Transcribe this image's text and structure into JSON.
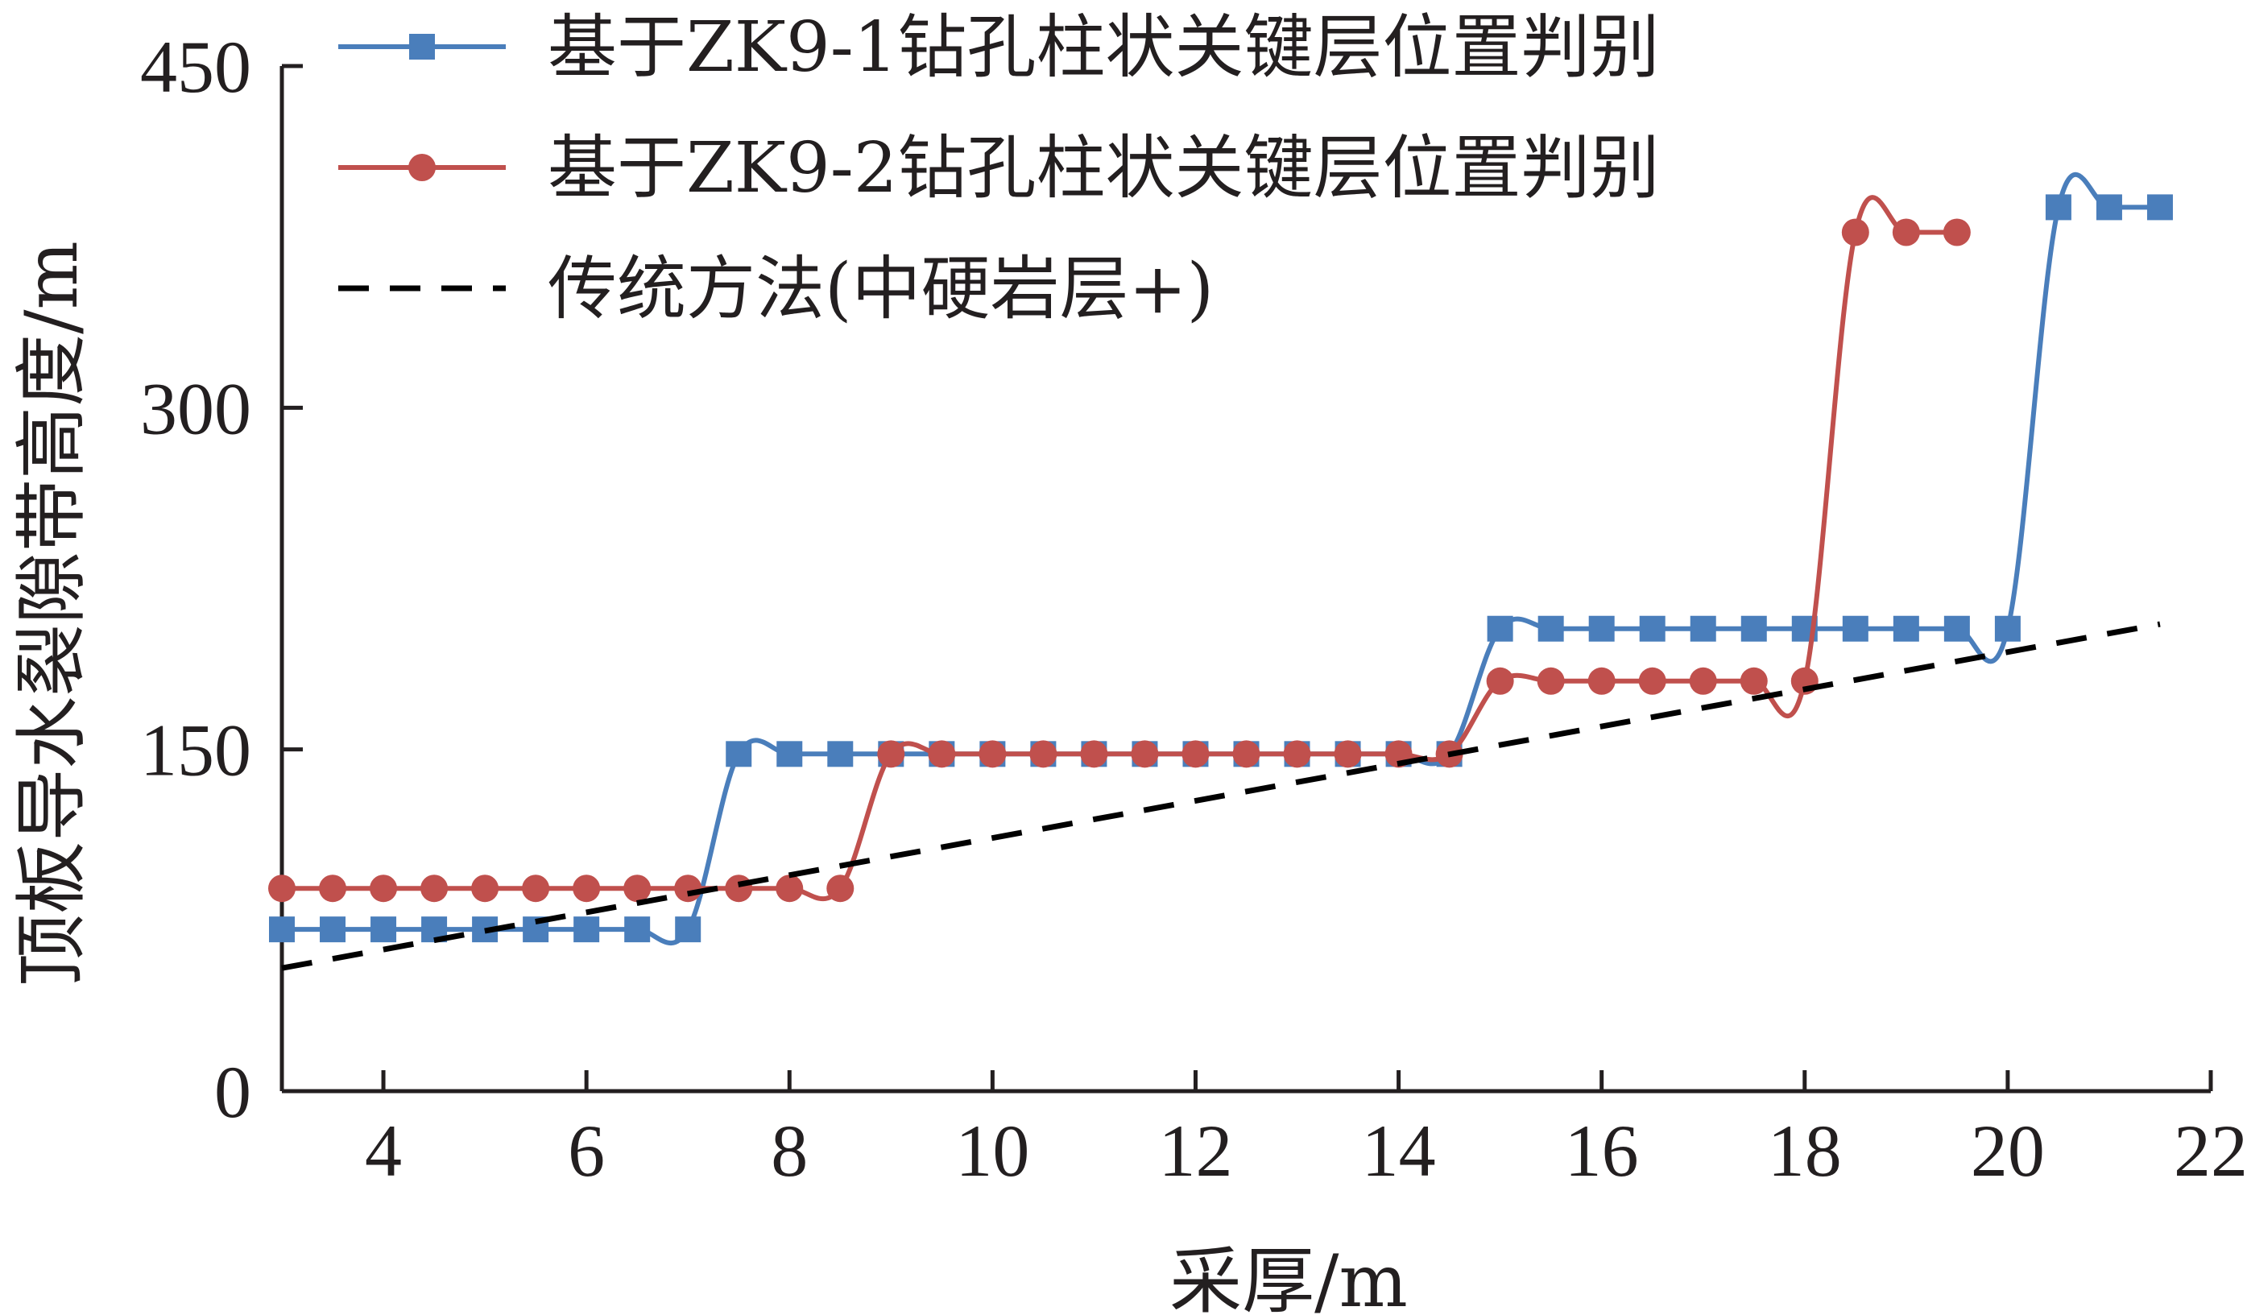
{
  "chart_data": {
    "type": "line",
    "xlabel": "采厚/m",
    "ylabel": "顶板导水裂隙带高度/m",
    "xlim": [
      3,
      22
    ],
    "ylim": [
      0,
      450
    ],
    "x_ticks": [
      4,
      6,
      8,
      10,
      12,
      14,
      16,
      18,
      20,
      22
    ],
    "y_ticks": [
      0,
      150,
      300,
      450
    ],
    "legend_position": "top",
    "series": [
      {
        "name": "基于ZK9-1钻孔柱状关键层位置判别",
        "color": "#4a7ebb",
        "marker": "square",
        "x": [
          3,
          3.5,
          4,
          4.5,
          5,
          5.5,
          6,
          6.5,
          7,
          7.5,
          8,
          8.5,
          9,
          9.5,
          10,
          10.5,
          11,
          11.5,
          12,
          12.5,
          13,
          13.5,
          14,
          14.5,
          15,
          15.5,
          16,
          16.5,
          17,
          17.5,
          18,
          18.5,
          19,
          19.5,
          20,
          20.5,
          21,
          21.5
        ],
        "y": [
          71,
          71,
          71,
          71,
          71,
          71,
          71,
          71,
          71,
          148,
          148,
          148,
          148,
          148,
          148,
          148,
          148,
          148,
          148,
          148,
          148,
          148,
          148,
          148,
          203,
          203,
          203,
          203,
          203,
          203,
          203,
          203,
          203,
          203,
          203,
          388,
          388,
          388
        ]
      },
      {
        "name": "基于ZK9-2钻孔柱状关键层位置判别",
        "color": "#c0504d",
        "marker": "circle",
        "x": [
          3,
          3.5,
          4,
          4.5,
          5,
          5.5,
          6,
          6.5,
          7,
          7.5,
          8,
          8.5,
          9,
          9.5,
          10,
          10.5,
          11,
          11.5,
          12,
          12.5,
          13,
          13.5,
          14,
          14.5,
          15,
          15.5,
          16,
          16.5,
          17,
          17.5,
          18,
          18.5,
          19,
          19.5
        ],
        "y": [
          89,
          89,
          89,
          89,
          89,
          89,
          89,
          89,
          89,
          89,
          89,
          89,
          148,
          148,
          148,
          148,
          148,
          148,
          148,
          148,
          148,
          148,
          148,
          148,
          180,
          180,
          180,
          180,
          180,
          180,
          180,
          377,
          377,
          377
        ]
      },
      {
        "name": "传统方法(中硬岩层+)",
        "color": "#000000",
        "style": "dashed",
        "x": [
          3,
          21.5
        ],
        "y": [
          54,
          205
        ]
      }
    ]
  }
}
